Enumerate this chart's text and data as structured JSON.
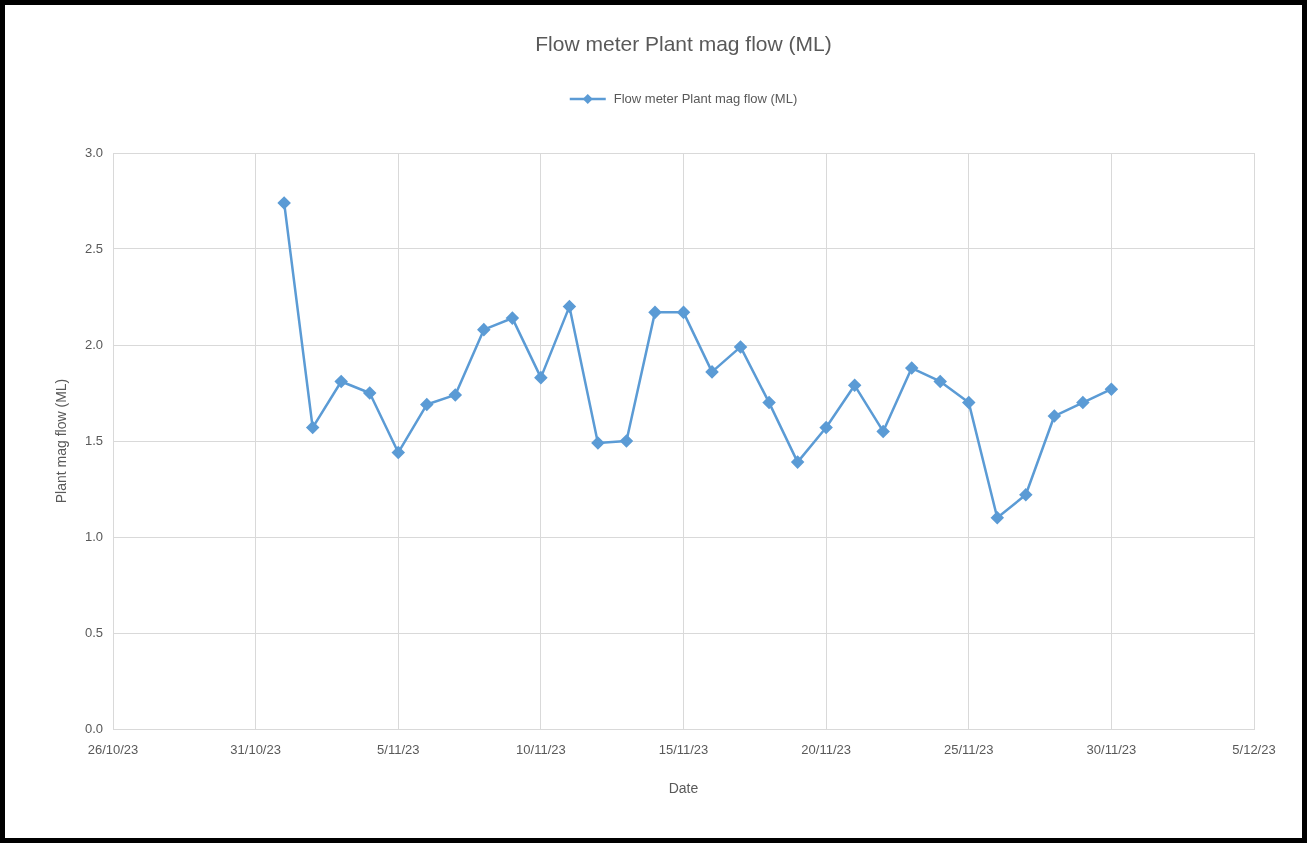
{
  "chart_data": {
    "type": "line",
    "title": "Flow meter Plant mag flow (ML)",
    "xlabel": "Date",
    "ylabel": "Plant mag flow (ML)",
    "x": [
      "--11-01",
      "--11-02",
      "--11-03",
      "--11-04",
      "--11-05",
      "--11-06",
      "--11-07",
      "--11-08",
      "--11-09",
      "--11-10",
      "--11-11",
      "--11-12",
      "--11-13",
      "--11-14",
      "--11-15",
      "--11-16",
      "--11-17",
      "--11-18",
      "--11-19",
      "--11-20",
      "--11-21",
      "--11-22",
      "--11-23",
      "--11-24",
      "--11-25",
      "--11-26",
      "--11-27",
      "--11-28",
      "--11-29",
      "--11-30"
    ],
    "series": [
      {
        "name": "Flow meter Plant mag flow (ML)",
        "color": "#5b9bd5",
        "values": [
          2.74,
          1.57,
          1.81,
          1.75,
          1.44,
          1.69,
          1.74,
          2.08,
          2.14,
          1.83,
          2.2,
          1.49,
          1.5,
          2.17,
          2.17,
          1.86,
          1.99,
          1.7,
          1.39,
          1.57,
          1.79,
          1.55,
          1.88,
          1.81,
          1.7,
          1.1,
          1.22,
          1.63,
          1.7,
          1.77
        ]
      }
    ],
    "xlim": [
      "--10-26",
      "--12-05"
    ],
    "xticks": [
      {
        "value": "--10-26",
        "label": "26/10/23"
      },
      {
        "value": "--10-31",
        "label": "31/10/23"
      },
      {
        "value": "--11-05",
        "label": "5/11/23"
      },
      {
        "value": "--11-10",
        "label": "10/11/23"
      },
      {
        "value": "--11-15",
        "label": "15/11/23"
      },
      {
        "value": "--11-20",
        "label": "20/11/23"
      },
      {
        "value": "--11-25",
        "label": "25/11/23"
      },
      {
        "value": "--11-30",
        "label": "30/11/23"
      },
      {
        "value": "--12-05",
        "label": "5/12/23"
      }
    ],
    "ylim": [
      0,
      3
    ],
    "yticks": [
      {
        "value": 0,
        "label": "0.0"
      },
      {
        "value": 0.5,
        "label": "0.5"
      },
      {
        "value": 1,
        "label": "1.0"
      },
      {
        "value": 1.5,
        "label": "1.5"
      },
      {
        "value": 2,
        "label": "2.0"
      },
      {
        "value": 2.5,
        "label": "2.5"
      },
      {
        "value": 3,
        "label": "3.0"
      }
    ],
    "grid": true,
    "legend": "top",
    "marker": "diamond",
    "line_style": "solid"
  }
}
